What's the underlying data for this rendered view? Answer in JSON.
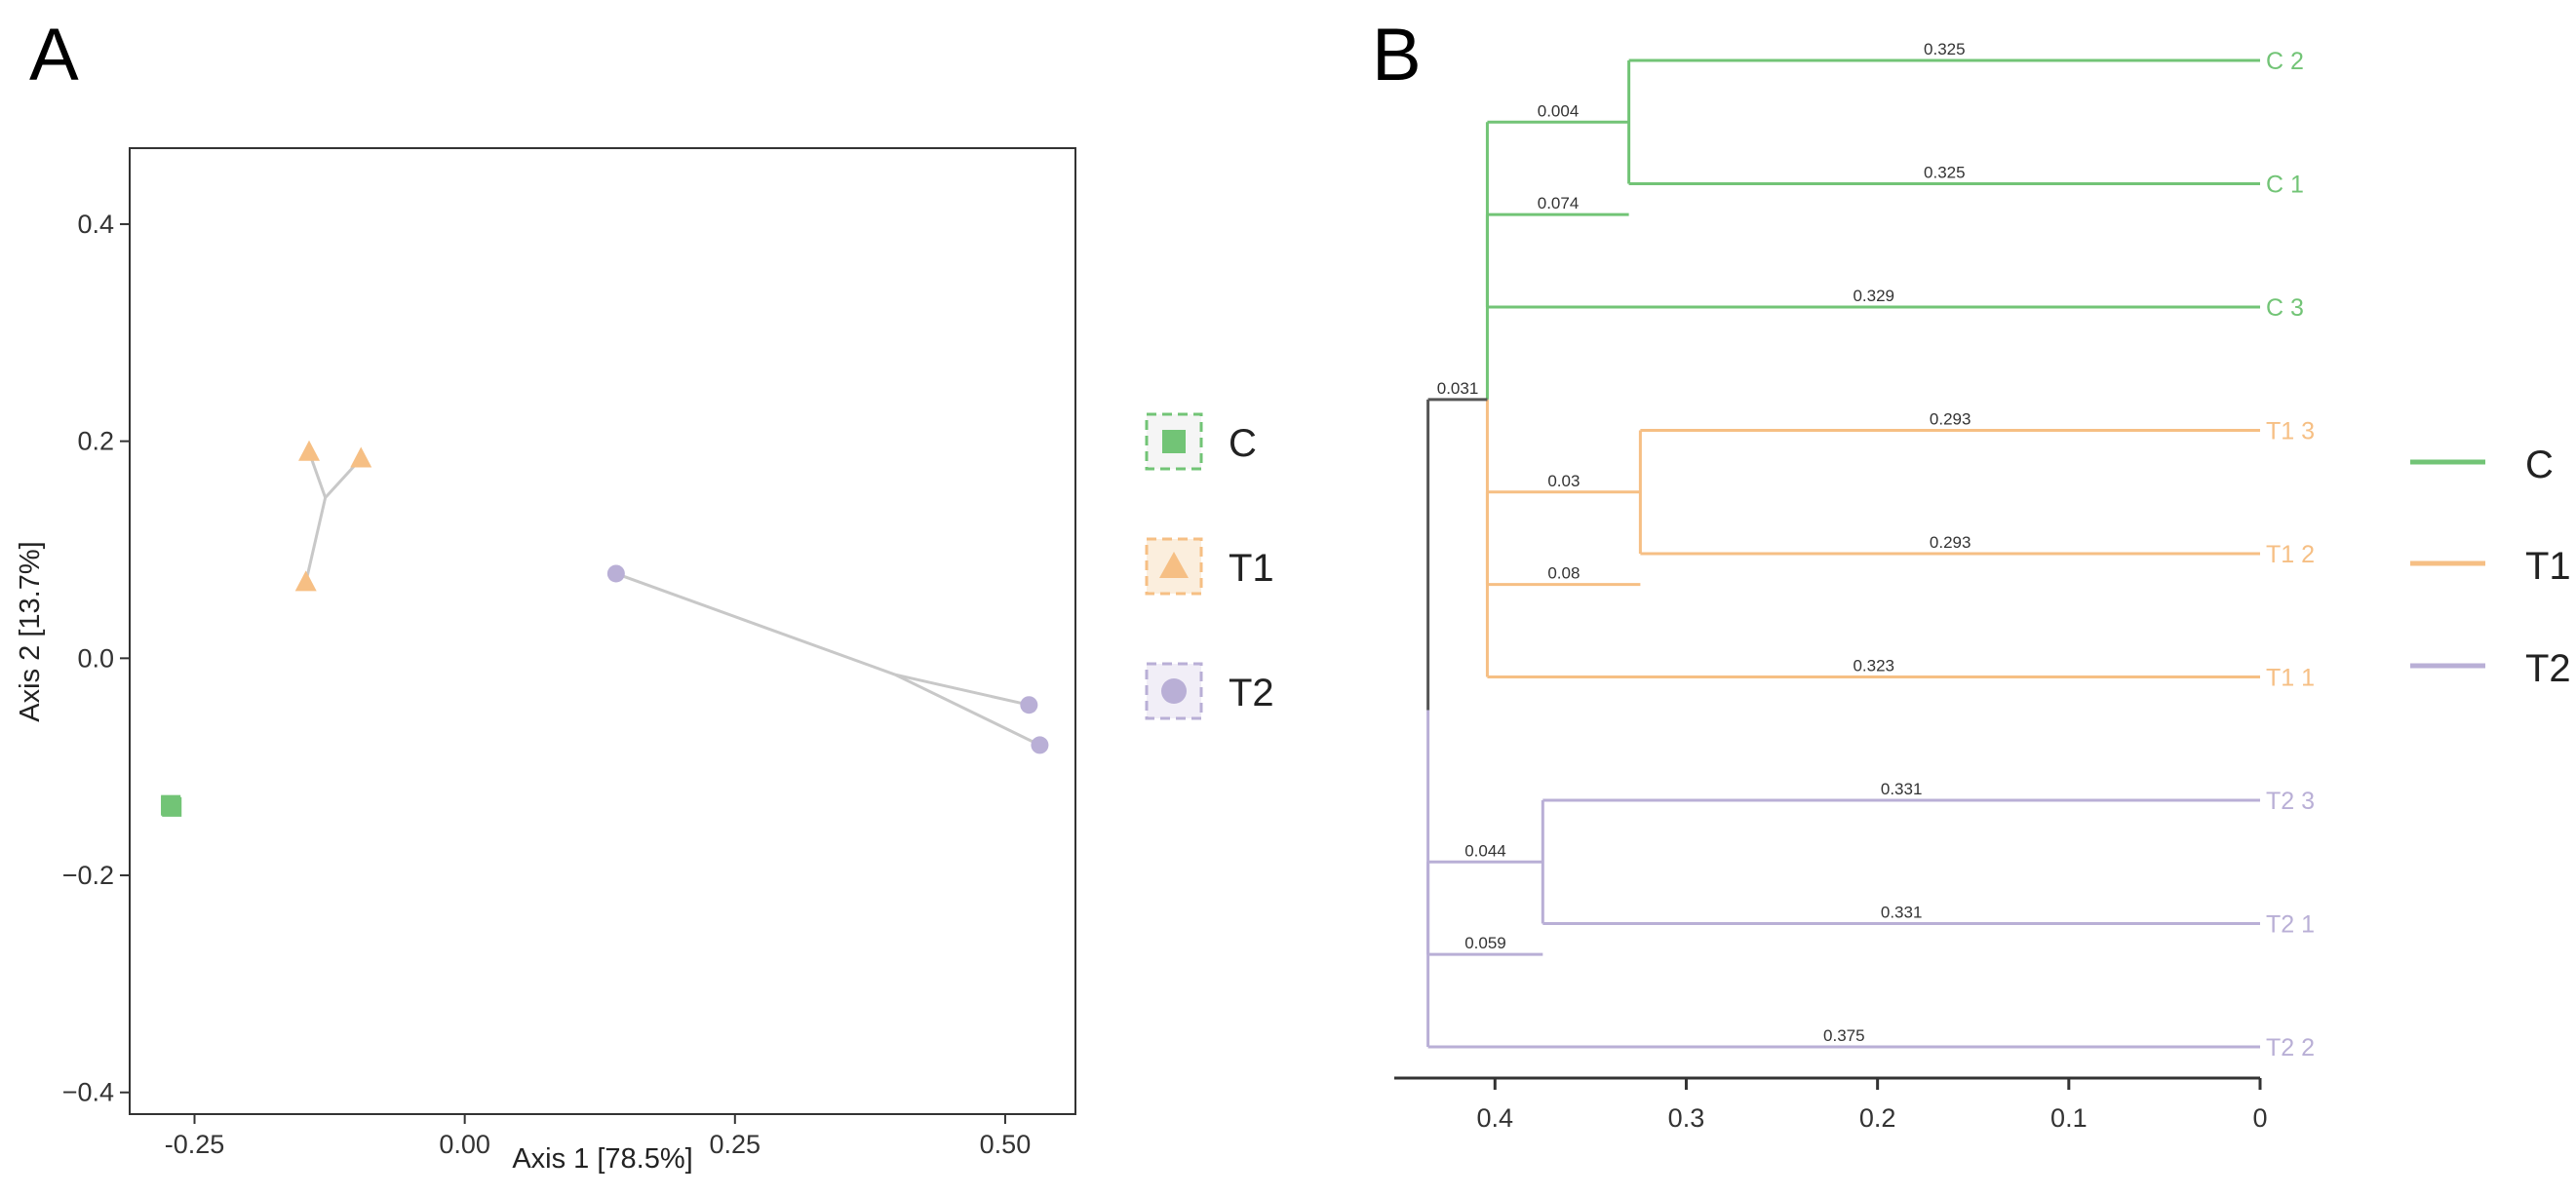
{
  "panels": {
    "a_label": "A",
    "b_label": "B"
  },
  "colors": {
    "C": "#72c476",
    "T1": "#f6bf84",
    "T2": "#b9afd6",
    "root": "#555555",
    "connector": "#c8c8c8",
    "frame": "#333333"
  },
  "chart_data": [
    {
      "type": "scatter",
      "panel": "A",
      "xlabel": "Axis 1 [78.5%]",
      "ylabel": "Axis 2 [13.7%]",
      "xlim": [
        -0.31,
        0.565
      ],
      "ylim": [
        -0.42,
        0.47
      ],
      "xticks": [
        -0.25,
        0.0,
        0.25,
        0.5
      ],
      "xtick_labels": [
        "-0.25",
        "0.00",
        "0.25",
        "0.50"
      ],
      "yticks": [
        -0.4,
        -0.2,
        0.0,
        0.2,
        0.4
      ],
      "ytick_labels": [
        "−0.4",
        "−0.2",
        "0.0",
        "0.2",
        "0.4"
      ],
      "series": [
        {
          "name": "C",
          "marker": "square",
          "color": "#72c476",
          "points": [
            {
              "x": -0.272,
              "y": -0.135
            },
            {
              "x": -0.272,
              "y": -0.136
            },
            {
              "x": -0.271,
              "y": -0.137
            }
          ],
          "centroid": {
            "x": -0.272,
            "y": -0.136
          }
        },
        {
          "name": "T1",
          "marker": "triangle",
          "color": "#f6bf84",
          "points": [
            {
              "x": -0.144,
              "y": 0.19
            },
            {
              "x": -0.096,
              "y": 0.184
            },
            {
              "x": -0.147,
              "y": 0.07
            }
          ],
          "centroid": {
            "x": -0.129,
            "y": 0.148
          }
        },
        {
          "name": "T2",
          "marker": "circle",
          "color": "#b9afd6",
          "points": [
            {
              "x": 0.14,
              "y": 0.078
            },
            {
              "x": 0.522,
              "y": -0.043
            },
            {
              "x": 0.532,
              "y": -0.08
            }
          ],
          "centroid": {
            "x": 0.398,
            "y": -0.015
          }
        }
      ],
      "legend": {
        "position": "right",
        "entries": [
          {
            "label": "C",
            "marker": "square"
          },
          {
            "label": "T1",
            "marker": "triangle"
          },
          {
            "label": "T2",
            "marker": "circle"
          }
        ]
      }
    },
    {
      "type": "dendrogram",
      "panel": "B",
      "xaxis": {
        "reversed": true,
        "xlim": [
          0.445,
          0
        ],
        "ticks": [
          0.4,
          0.3,
          0.2,
          0.1,
          0
        ],
        "tick_labels": [
          "0.4",
          "0.3",
          "0.2",
          "0.1",
          "0"
        ]
      },
      "root": {
        "height": 0.435,
        "label": "0.031"
      },
      "clusters": [
        {
          "group": "C",
          "node_height": 0.404,
          "branch_label": "0.074",
          "subnodes": [
            {
              "node_height": 0.33,
              "branch_label": "0.004",
              "leaves": [
                {
                  "name": "C 2",
                  "branch_label": "0.325"
                },
                {
                  "name": "C 1",
                  "branch_label": "0.325"
                }
              ]
            },
            {
              "leaf": {
                "name": "C 3",
                "branch_label": "0.329"
              }
            }
          ]
        },
        {
          "group": "T1",
          "node_height": 0.404,
          "branch_label": "0.08",
          "subnodes": [
            {
              "node_height": 0.324,
              "branch_label": "0.03",
              "leaves": [
                {
                  "name": "T1 3",
                  "branch_label": "0.293"
                },
                {
                  "name": "T1 2",
                  "branch_label": "0.293"
                }
              ]
            },
            {
              "leaf": {
                "name": "T1 1",
                "branch_label": "0.323"
              }
            }
          ]
        },
        {
          "group": "T2",
          "node_height": 0.435,
          "branch_label": "0.059",
          "subnodes": [
            {
              "node_height": 0.375,
              "branch_label": "0.044",
              "leaves": [
                {
                  "name": "T2 3",
                  "branch_label": "0.331"
                },
                {
                  "name": "T2 1",
                  "branch_label": "0.331"
                }
              ]
            },
            {
              "leaf": {
                "name": "T2 2",
                "branch_label": "0.375"
              }
            }
          ]
        }
      ],
      "leaf_order": [
        "C 2",
        "C 1",
        "C 3",
        "T1 3",
        "T1 2",
        "T1 1",
        "T2 3",
        "T2 1",
        "T2 2"
      ],
      "legend": {
        "position": "right",
        "entries": [
          {
            "label": "C",
            "marker": "line"
          },
          {
            "label": "T1",
            "marker": "line"
          },
          {
            "label": "T2",
            "marker": "line"
          }
        ]
      }
    }
  ]
}
